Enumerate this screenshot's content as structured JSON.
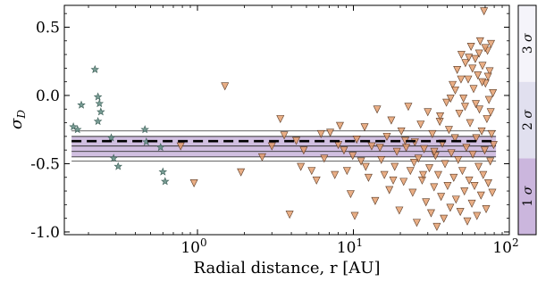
{
  "chart_data": {
    "type": "scatter",
    "title": "",
    "xlabel": "Radial distance, r [AU]",
    "ylabel": "σ_D",
    "xscale": "log",
    "xlim": [
      0.14,
      100
    ],
    "ylim": [
      -1.02,
      0.66
    ],
    "x_ticks": [
      {
        "value": 1,
        "label": "10^0"
      },
      {
        "value": 10,
        "label": "10^1"
      },
      {
        "value": 100,
        "label": "10^2"
      }
    ],
    "y_ticks": [
      {
        "value": 0.5,
        "label": "0.5"
      },
      {
        "value": 0.0,
        "label": "0.0"
      },
      {
        "value": -0.5,
        "label": "-0.5"
      },
      {
        "value": -1.0,
        "label": "-1.0"
      }
    ],
    "grid": false,
    "reference": {
      "mean": -0.335,
      "mean_line_x_range": [
        0.16,
        80
      ],
      "inner_lines": [
        -0.3,
        -0.37
      ],
      "outer_lines": [
        -0.26,
        -0.41,
        -0.45,
        -0.48
      ],
      "shaded_band": [
        -0.3,
        -0.45
      ],
      "colors": {
        "mean": "#000000",
        "band": "#c9b4dc",
        "lines": "#333333"
      }
    },
    "sigma_colorbar": {
      "labels": [
        "1 σ",
        "2 σ",
        "3 σ"
      ],
      "levels": [
        {
          "label": "1 σ",
          "range": [
            -1.02,
            -0.46
          ],
          "color": "#cbb6dd"
        },
        {
          "label": "2 σ",
          "range": [
            -0.46,
            0.1
          ],
          "color": "#e1e0ef"
        },
        {
          "label": "3 σ",
          "range": [
            0.1,
            0.66
          ],
          "color": "#f5f4fa"
        }
      ]
    },
    "series": [
      {
        "marker": "star",
        "color": "#5f8a80",
        "points": [
          [
            0.16,
            -0.23
          ],
          [
            0.17,
            -0.25
          ],
          [
            0.18,
            -0.07
          ],
          [
            0.22,
            0.19
          ],
          [
            0.23,
            -0.01
          ],
          [
            0.23,
            -0.19
          ],
          [
            0.235,
            -0.06
          ],
          [
            0.24,
            -0.12
          ],
          [
            0.28,
            -0.31
          ],
          [
            0.29,
            -0.46
          ],
          [
            0.31,
            -0.52
          ],
          [
            0.46,
            -0.25
          ],
          [
            0.47,
            -0.34
          ],
          [
            0.58,
            -0.38
          ],
          [
            0.6,
            -0.56
          ],
          [
            0.62,
            -0.63
          ]
        ]
      },
      {
        "marker": "triangle-down",
        "color": "#e49a66",
        "points": [
          [
            0.78,
            -0.37
          ],
          [
            0.95,
            -0.64
          ],
          [
            1.5,
            0.07
          ],
          [
            1.9,
            -0.56
          ],
          [
            2.6,
            -0.45
          ],
          [
            3.0,
            -0.37
          ],
          [
            3.4,
            -0.17
          ],
          [
            3.9,
            -0.87
          ],
          [
            4.3,
            -0.33
          ],
          [
            4.8,
            -0.4
          ],
          [
            5.4,
            -0.55
          ],
          [
            5.8,
            -0.62
          ],
          [
            6.5,
            -0.46
          ],
          [
            7.1,
            -0.27
          ],
          [
            7.6,
            -0.58
          ],
          [
            8.2,
            -0.22
          ],
          [
            8.7,
            -0.4
          ],
          [
            9.1,
            -0.55
          ],
          [
            9.6,
            -0.72
          ],
          [
            10.2,
            -0.88
          ],
          [
            10.5,
            -0.32
          ],
          [
            11.2,
            -0.48
          ],
          [
            11.8,
            -0.23
          ],
          [
            12.5,
            -0.6
          ],
          [
            13.1,
            -0.37
          ],
          [
            13.8,
            -0.77
          ],
          [
            14.2,
            -0.1
          ],
          [
            15.1,
            -0.47
          ],
          [
            15.8,
            -0.58
          ],
          [
            16.4,
            -0.3
          ],
          [
            17.0,
            -0.69
          ],
          [
            17.5,
            -0.18
          ],
          [
            18.4,
            -0.52
          ],
          [
            19.0,
            -0.41
          ],
          [
            19.7,
            -0.84
          ],
          [
            20.3,
            -0.26
          ],
          [
            21.0,
            -0.63
          ],
          [
            21.8,
            -0.38
          ],
          [
            22.5,
            -0.08
          ],
          [
            23.2,
            -0.55
          ],
          [
            24.0,
            -0.71
          ],
          [
            24.8,
            -0.34
          ],
          [
            25.5,
            -0.93
          ],
          [
            26.1,
            -0.46
          ],
          [
            27.0,
            -0.21
          ],
          [
            27.6,
            -0.62
          ],
          [
            28.4,
            -0.39
          ],
          [
            29.2,
            -0.78
          ],
          [
            30.0,
            -0.12
          ],
          [
            30.7,
            -0.53
          ],
          [
            31.5,
            -0.86
          ],
          [
            32.1,
            -0.28
          ],
          [
            32.9,
            -0.67
          ],
          [
            33.6,
            -0.44
          ],
          [
            34.3,
            -0.96
          ],
          [
            35.0,
            -0.58
          ],
          [
            35.8,
            -0.19
          ],
          [
            36.5,
            -0.74
          ],
          [
            37.2,
            -0.35
          ],
          [
            38.0,
            -0.9
          ],
          [
            38.7,
            -0.5
          ],
          [
            39.5,
            -0.05
          ],
          [
            40.2,
            -0.66
          ],
          [
            41.0,
            -0.25
          ],
          [
            41.8,
            -0.82
          ],
          [
            42.5,
            -0.42
          ],
          [
            43.3,
            0.08
          ],
          [
            44.0,
            -0.6
          ],
          [
            44.8,
            -0.31
          ],
          [
            45.5,
            -0.76
          ],
          [
            46.3,
            0.19
          ],
          [
            47.0,
            -0.47
          ],
          [
            47.8,
            -0.13
          ],
          [
            48.5,
            -0.85
          ],
          [
            49.3,
            0.3
          ],
          [
            50.0,
            -0.55
          ],
          [
            50.8,
            -0.02
          ],
          [
            51.5,
            -0.7
          ],
          [
            52.3,
            0.24
          ],
          [
            53.0,
            -0.38
          ],
          [
            53.8,
            -0.92
          ],
          [
            54.5,
            0.12
          ],
          [
            55.3,
            -0.62
          ],
          [
            56.0,
            -0.2
          ],
          [
            56.8,
            0.36
          ],
          [
            57.5,
            -0.79
          ],
          [
            58.3,
            -0.43
          ],
          [
            59.0,
            0.05
          ],
          [
            59.8,
            -0.66
          ],
          [
            60.5,
            0.27
          ],
          [
            61.3,
            -0.31
          ],
          [
            62.0,
            -0.88
          ],
          [
            62.8,
            0.15
          ],
          [
            63.5,
            -0.52
          ],
          [
            64.3,
            -0.1
          ],
          [
            65.0,
            0.4
          ],
          [
            65.8,
            -0.73
          ],
          [
            66.5,
            -0.26
          ],
          [
            67.3,
            0.22
          ],
          [
            68.0,
            -0.58
          ],
          [
            68.8,
            0.62
          ],
          [
            69.5,
            -0.4
          ],
          [
            70.3,
            0.09
          ],
          [
            71.0,
            -0.83
          ],
          [
            71.8,
            -0.17
          ],
          [
            72.5,
            0.33
          ],
          [
            73.3,
            -0.64
          ],
          [
            74.0,
            -0.03
          ],
          [
            74.8,
            0.18
          ],
          [
            75.5,
            -0.48
          ],
          [
            76.3,
            0.38
          ],
          [
            77.0,
            -0.28
          ],
          [
            77.8,
            -0.71
          ],
          [
            78.5,
            0.02
          ],
          [
            79.3,
            -0.36
          ],
          [
            36.0,
            -0.15
          ],
          [
            42.0,
            -0.02
          ],
          [
            45.0,
            0.04
          ],
          [
            49.0,
            0.12
          ],
          [
            52.0,
            -0.08
          ],
          [
            55.0,
            0.28
          ],
          [
            58.0,
            0.2
          ],
          [
            61.0,
            -0.06
          ],
          [
            64.0,
            0.31
          ],
          [
            67.0,
            0.1
          ],
          [
            70.0,
            0.35
          ],
          [
            73.0,
            0.14
          ],
          [
            76.0,
            -0.12
          ],
          [
            33.0,
            -0.41
          ],
          [
            28.0,
            -0.58
          ],
          [
            24.5,
            -0.49
          ],
          [
            21.5,
            -0.33
          ],
          [
            18.0,
            -0.62
          ],
          [
            14.8,
            -0.38
          ],
          [
            12.0,
            -0.52
          ],
          [
            9.9,
            -0.44
          ],
          [
            8.0,
            -0.36
          ],
          [
            6.2,
            -0.28
          ],
          [
            4.6,
            -0.52
          ],
          [
            3.6,
            -0.29
          ]
        ]
      }
    ]
  }
}
